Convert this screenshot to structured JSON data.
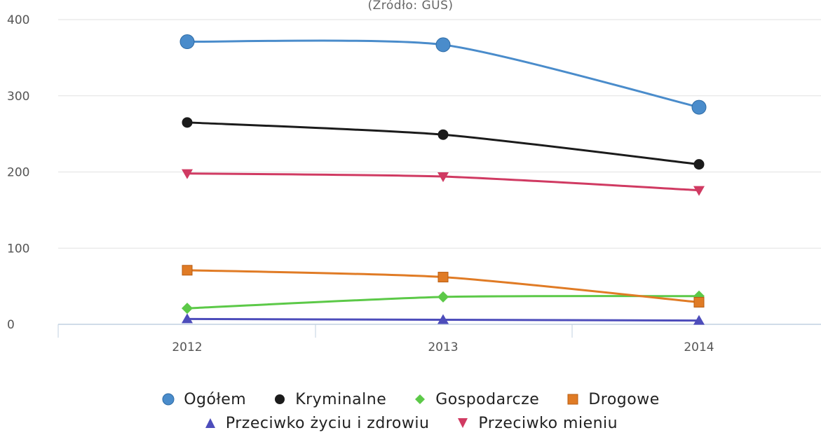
{
  "subtitle": "(Źródło: GUS)",
  "colors": {
    "ogolem": "#4a8ccb",
    "kryminalne": "#1b1b1b",
    "gospodarcze": "#5cc948",
    "drogowe": "#e07b25",
    "zyciu": "#4d4dbb",
    "mieniu": "#d03a62"
  },
  "chart_data": {
    "type": "line",
    "title": "",
    "subtitle": "(Źródło: GUS)",
    "xlabel": "",
    "ylabel": "",
    "categories": [
      "2012",
      "2013",
      "2014"
    ],
    "ylim": [
      0,
      400
    ],
    "yticks": [
      "0",
      "100",
      "200",
      "300",
      "400"
    ],
    "grid": true,
    "legend_position": "bottom",
    "series": [
      {
        "name": "Ogółem",
        "key": "ogolem",
        "marker": "circle",
        "values": [
          371,
          367,
          285
        ]
      },
      {
        "name": "Kryminalne",
        "key": "kryminalne",
        "marker": "circle",
        "values": [
          265,
          249,
          210
        ]
      },
      {
        "name": "Gospodarcze",
        "key": "gospodarcze",
        "marker": "diamond",
        "values": [
          21,
          36,
          37
        ]
      },
      {
        "name": "Drogowe",
        "key": "drogowe",
        "marker": "square",
        "values": [
          71,
          62,
          29
        ]
      },
      {
        "name": "Przeciwko życiu i zdrowiu",
        "key": "zyciu",
        "marker": "triangle",
        "values": [
          7,
          6,
          5
        ]
      },
      {
        "name": "Przeciwko mieniu",
        "key": "mieniu",
        "marker": "triangle-down",
        "values": [
          198,
          194,
          176
        ]
      }
    ]
  }
}
